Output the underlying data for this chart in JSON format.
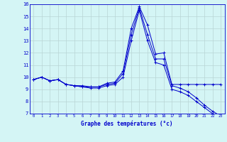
{
  "title": "Graphe des températures (°c)",
  "background_color": "#d4f5f5",
  "grid_color": "#b8d4d4",
  "line_color": "#0000cc",
  "x_hours": [
    0,
    1,
    2,
    3,
    4,
    5,
    6,
    7,
    8,
    9,
    10,
    11,
    12,
    13,
    14,
    15,
    16,
    17,
    18,
    19,
    20,
    21,
    22,
    23
  ],
  "line1": [
    9.8,
    10.0,
    9.7,
    9.8,
    9.4,
    9.3,
    9.3,
    9.2,
    9.2,
    9.5,
    9.6,
    10.5,
    14.0,
    15.8,
    14.3,
    11.9,
    12.0,
    9.4,
    9.4,
    9.4,
    9.4,
    9.4,
    9.4,
    9.4
  ],
  "line2": [
    9.8,
    10.0,
    9.7,
    9.8,
    9.4,
    9.3,
    9.2,
    9.2,
    9.2,
    9.4,
    9.5,
    10.3,
    13.5,
    15.7,
    13.5,
    11.5,
    11.5,
    9.3,
    9.1,
    8.8,
    8.3,
    7.7,
    7.2,
    6.8
  ],
  "line3": [
    9.8,
    10.0,
    9.7,
    9.8,
    9.4,
    9.3,
    9.2,
    9.1,
    9.1,
    9.3,
    9.4,
    10.0,
    13.0,
    15.5,
    13.0,
    11.2,
    11.0,
    9.0,
    8.8,
    8.5,
    8.0,
    7.5,
    7.0,
    6.7
  ],
  "ylim": [
    7,
    16
  ],
  "yticks": [
    7,
    8,
    9,
    10,
    11,
    12,
    13,
    14,
    15,
    16
  ]
}
